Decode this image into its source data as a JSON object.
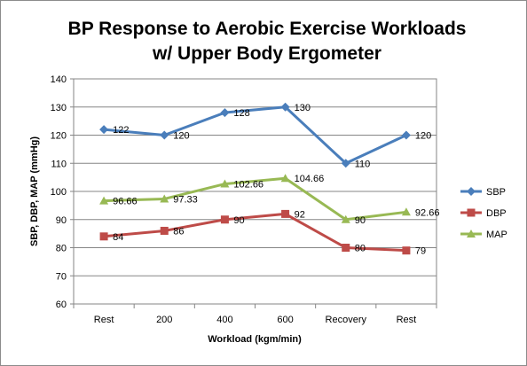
{
  "chart_data": {
    "type": "line",
    "title_lines": [
      "BP Response to Aerobic Exercise Workloads",
      "w/ Upper Body Ergometer"
    ],
    "xlabel": "Workload (kgm/min)",
    "ylabel": "SBP, DBP, MAP (mmHg)",
    "categories": [
      "Rest",
      "200",
      "400",
      "600",
      "Recovery",
      "Rest"
    ],
    "ylim": [
      60,
      140
    ],
    "yticks": [
      60,
      70,
      80,
      90,
      100,
      110,
      120,
      130,
      140
    ],
    "grid": "horizontal",
    "legend": "right",
    "series": [
      {
        "name": "SBP",
        "color": "#4a7ebb",
        "marker": "diamond",
        "values": [
          122,
          120,
          128,
          130,
          110,
          120
        ],
        "labels": [
          "122",
          "120",
          "128",
          "130",
          "110",
          "120"
        ]
      },
      {
        "name": "DBP",
        "color": "#be4b48",
        "marker": "square",
        "values": [
          84,
          86,
          90,
          92,
          80,
          79
        ],
        "labels": [
          "84",
          "86",
          "90",
          "92",
          "80",
          "79"
        ]
      },
      {
        "name": "MAP",
        "color": "#98b954",
        "marker": "triangle",
        "values": [
          96.66,
          97.33,
          102.66,
          104.66,
          90,
          92.66
        ],
        "labels": [
          "96.66",
          "97.33",
          "102.66",
          "104.66",
          "90",
          "92.66"
        ]
      }
    ]
  }
}
